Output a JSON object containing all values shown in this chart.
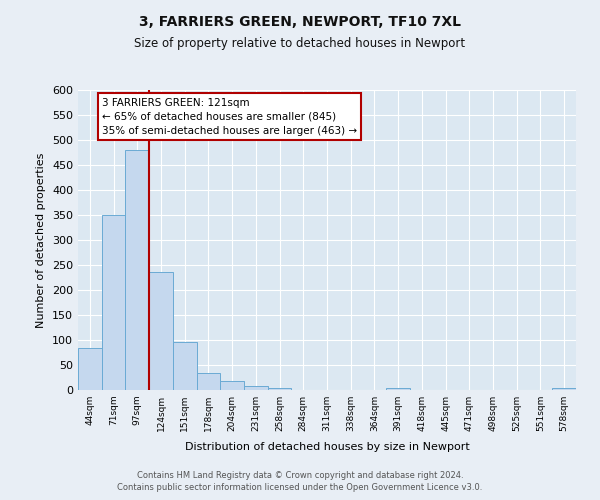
{
  "title": "3, FARRIERS GREEN, NEWPORT, TF10 7XL",
  "subtitle": "Size of property relative to detached houses in Newport",
  "xlabel": "Distribution of detached houses by size in Newport",
  "ylabel": "Number of detached properties",
  "bin_labels": [
    "44sqm",
    "71sqm",
    "97sqm",
    "124sqm",
    "151sqm",
    "178sqm",
    "204sqm",
    "231sqm",
    "258sqm",
    "284sqm",
    "311sqm",
    "338sqm",
    "364sqm",
    "391sqm",
    "418sqm",
    "445sqm",
    "471sqm",
    "498sqm",
    "525sqm",
    "551sqm",
    "578sqm"
  ],
  "bar_heights": [
    84,
    350,
    480,
    237,
    97,
    35,
    19,
    8,
    4,
    0,
    0,
    0,
    0,
    4,
    0,
    0,
    0,
    0,
    0,
    0,
    4
  ],
  "bar_color": "#c5d8ee",
  "bar_edge_color": "#6aaad4",
  "background_color": "#e8eef5",
  "plot_bg_color": "#dce8f2",
  "grid_color": "#ffffff",
  "vline_color": "#b00000",
  "annotation_title": "3 FARRIERS GREEN: 121sqm",
  "annotation_line1": "← 65% of detached houses are smaller (845)",
  "annotation_line2": "35% of semi-detached houses are larger (463) →",
  "annotation_box_color": "#ffffff",
  "annotation_box_edge": "#b00000",
  "footer_line1": "Contains HM Land Registry data © Crown copyright and database right 2024.",
  "footer_line2": "Contains public sector information licensed under the Open Government Licence v3.0.",
  "ylim": [
    0,
    600
  ],
  "yticks": [
    0,
    50,
    100,
    150,
    200,
    250,
    300,
    350,
    400,
    450,
    500,
    550,
    600
  ],
  "vline_pos": 2.5
}
